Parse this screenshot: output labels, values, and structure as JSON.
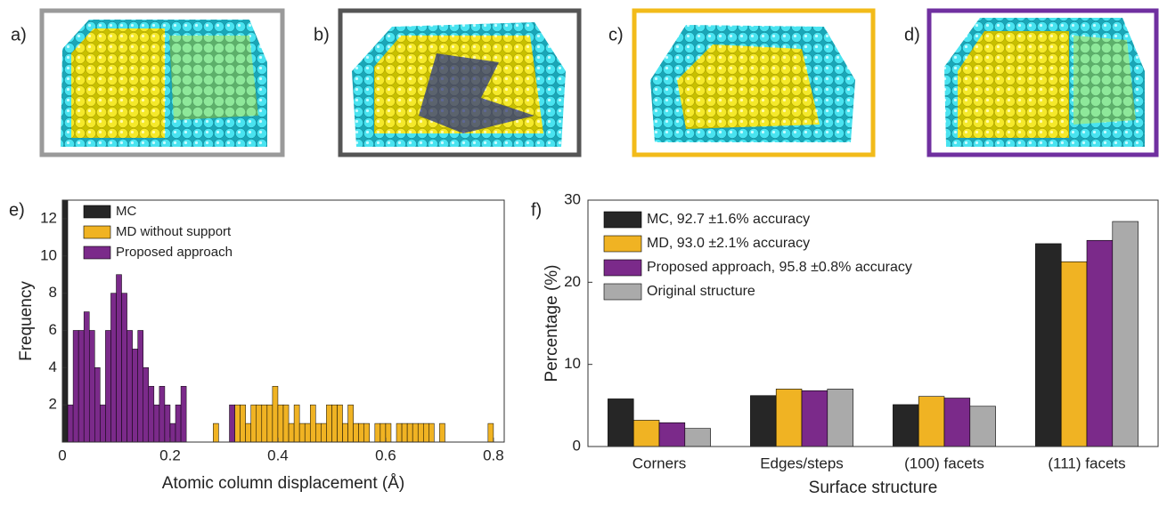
{
  "panels": [
    "a)",
    "b)",
    "c)",
    "d)"
  ],
  "chart_data": [
    {
      "type": "histogram",
      "label": "e)",
      "x_label": "Atomic column displacement (Å)",
      "y_label": "Frequency",
      "bins": [
        0,
        0.01,
        0.02,
        0.03,
        0.04,
        0.05,
        0.06,
        0.07,
        0.08,
        0.09,
        0.1,
        0.11,
        0.12,
        0.13,
        0.14,
        0.15,
        0.16,
        0.17,
        0.18,
        0.19,
        0.2,
        0.21,
        0.22,
        0.23,
        0.24,
        0.25,
        0.26,
        0.27,
        0.28,
        0.29,
        0.3,
        0.31,
        0.32,
        0.33,
        0.34,
        0.35,
        0.36,
        0.37,
        0.38,
        0.39,
        0.4,
        0.41,
        0.42,
        0.43,
        0.44,
        0.45,
        0.46,
        0.47,
        0.48,
        0.49,
        0.5,
        0.51,
        0.52,
        0.53,
        0.54,
        0.55,
        0.56,
        0.57,
        0.58,
        0.59,
        0.6,
        0.61,
        0.62,
        0.63,
        0.64,
        0.65,
        0.66,
        0.67,
        0.68,
        0.69,
        0.7,
        0.71,
        0.72,
        0.73,
        0.74,
        0.75,
        0.76,
        0.77,
        0.78,
        0.79,
        0.8
      ],
      "series": [
        {
          "name": "MC",
          "color": "#262626",
          "values": [
            13,
            0,
            0,
            0,
            0,
            0,
            0,
            0,
            0,
            0,
            0,
            0,
            0,
            0,
            0,
            0,
            0,
            0,
            0,
            0,
            0,
            0,
            0,
            0,
            0,
            0,
            0,
            0,
            0,
            0,
            0,
            0,
            0,
            0,
            0,
            0,
            0,
            0,
            0,
            0,
            0,
            0,
            0,
            0,
            0,
            0,
            0,
            0,
            0,
            0,
            0,
            0,
            0,
            0,
            0,
            0,
            0,
            0,
            0,
            0,
            0,
            0,
            0,
            0,
            0,
            0,
            0,
            0,
            0,
            0,
            0,
            0,
            0,
            0,
            0,
            0,
            0,
            0,
            0,
            0
          ]
        },
        {
          "name": "MD without support",
          "color": "#f0b323",
          "values": [
            0,
            0,
            0,
            0,
            0,
            0,
            0,
            0,
            0,
            0,
            0,
            0,
            0,
            0,
            0,
            0,
            0,
            0,
            0,
            0,
            0,
            0,
            0,
            0,
            0,
            0,
            0,
            0,
            1,
            0,
            0,
            0,
            2,
            2,
            1,
            2,
            2,
            2,
            2,
            3,
            2,
            2,
            1,
            2,
            1,
            1,
            2,
            1,
            1,
            2,
            2,
            2,
            1,
            2,
            1,
            1,
            1,
            0,
            1,
            1,
            1,
            0,
            1,
            1,
            1,
            1,
            1,
            1,
            1,
            0,
            1,
            0,
            0,
            0,
            0,
            0,
            0,
            0,
            0,
            1
          ]
        },
        {
          "name": "Proposed approach",
          "color": "#7b2a8a",
          "values": [
            0,
            2,
            6,
            6,
            7,
            6,
            4,
            2,
            6,
            8,
            9,
            8,
            6,
            5,
            6,
            4,
            3,
            2,
            3,
            2,
            1,
            2,
            3,
            0,
            0,
            0,
            0,
            0,
            0,
            0,
            0,
            2,
            0,
            0,
            0,
            0,
            0,
            0,
            0,
            0,
            0,
            0,
            0,
            0,
            0,
            0,
            0,
            0,
            0,
            0,
            0,
            0,
            0,
            0,
            0,
            0,
            0,
            0,
            0,
            0,
            0,
            0,
            0,
            0,
            0,
            0,
            0,
            0,
            0,
            0,
            0,
            0,
            0,
            0,
            0,
            0,
            0,
            0,
            0,
            0
          ]
        }
      ],
      "xlim": [
        0,
        0.82
      ],
      "xticks": [
        0,
        0.2,
        0.4,
        0.6,
        0.8
      ],
      "ylim": [
        0,
        13
      ],
      "yticks": [
        2,
        4,
        6,
        8,
        10,
        12
      ],
      "legend": "upper left"
    },
    {
      "type": "bar",
      "label": "f)",
      "x_label": "Surface structure",
      "y_label": "Percentage (%)",
      "categories": [
        "Corners",
        "Edges/steps",
        "(100) facets",
        "(111) facets"
      ],
      "series": [
        {
          "name": "MC, 92.7 ±1.6% accuracy",
          "color": "#262626",
          "values": [
            5.8,
            6.2,
            5.1,
            24.7
          ]
        },
        {
          "name": "MD, 93.0 ±2.1% accuracy",
          "color": "#f0b323",
          "values": [
            3.2,
            7.0,
            6.1,
            22.5
          ]
        },
        {
          "name": "Proposed approach, 95.8 ±0.8% accuracy",
          "color": "#7b2a8a",
          "values": [
            2.9,
            6.8,
            5.9,
            25.1
          ]
        },
        {
          "name": "Original structure",
          "color": "#aaaaaa",
          "values": [
            2.2,
            7.0,
            4.9,
            27.4
          ]
        }
      ],
      "ylim": [
        0,
        30
      ],
      "yticks": [
        0,
        10,
        20,
        30
      ],
      "legend": "upper left"
    }
  ]
}
